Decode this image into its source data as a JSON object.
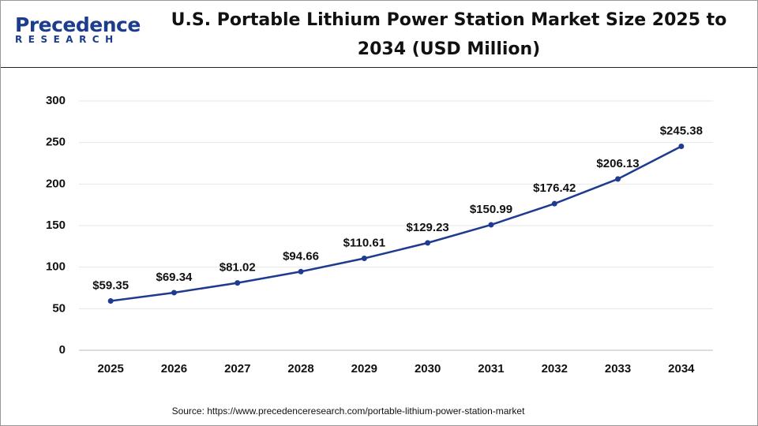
{
  "logo": {
    "name": "Precedence",
    "sub": "RESEARCH"
  },
  "chart_data": {
    "type": "line",
    "title": "U.S. Portable Lithium Power Station Market Size 2025 to 2034 (USD Million)",
    "categories": [
      "2025",
      "2026",
      "2027",
      "2028",
      "2029",
      "2030",
      "2031",
      "2032",
      "2033",
      "2034"
    ],
    "values": [
      59.35,
      69.34,
      81.02,
      94.66,
      110.61,
      129.23,
      150.99,
      176.42,
      206.13,
      245.38
    ],
    "value_labels": [
      "$59.35",
      "$69.34",
      "$81.02",
      "$94.66",
      "$110.61",
      "$129.23",
      "$150.99",
      "$176.42",
      "$206.13",
      "$245.38"
    ],
    "color": "#1f3b8f",
    "ylim": [
      0,
      300
    ],
    "yticks": [
      0,
      50,
      100,
      150,
      200,
      250,
      300
    ],
    "grid": true,
    "source": "Source: https://www.precedenceresearch.com/portable-lithium-power-station-market"
  }
}
